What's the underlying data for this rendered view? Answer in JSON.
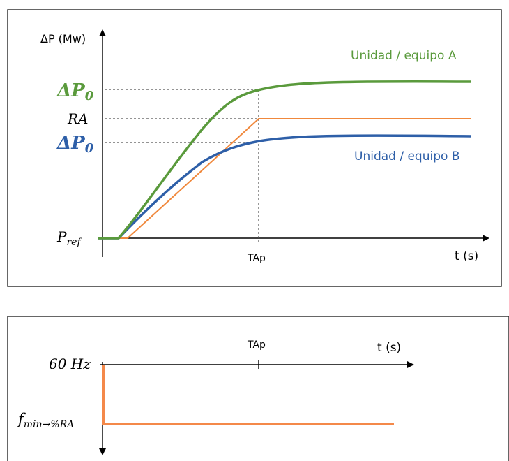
{
  "colors": {
    "unit_a": "#5a9a3c",
    "unit_b": "#2e5fa8",
    "ramp": "#f0883c",
    "frequency": "#f4894a",
    "axis": "#000000",
    "guide": "#555555"
  },
  "top_panel": {
    "y_axis_label": "ΔP (Mw)",
    "x_axis_label": "t (s)",
    "tap_label": "TAp",
    "level_labels": {
      "delta_p0_a_base": "ΔP",
      "delta_p0_a_sub": "0",
      "ra": "RA",
      "delta_p0_b_base": "ΔP",
      "delta_p0_b_sub": "0",
      "pref_base": "P",
      "pref_sub": "ref"
    },
    "curve_a_label": "Unidad / equipo A",
    "curve_b_label": "Unidad / equipo B"
  },
  "bottom_panel": {
    "tap_label": "TAp",
    "x_axis_label": "t (s)",
    "freq_60_label": "60 Hz",
    "fmin_base": "f",
    "fmin_sub": "min→%RA"
  }
}
